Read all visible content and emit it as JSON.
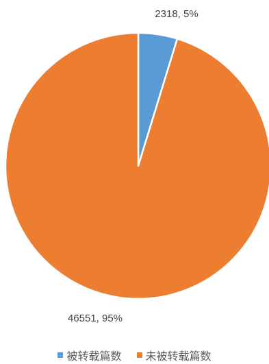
{
  "chart_data": {
    "type": "pie",
    "title": "",
    "slices": [
      {
        "name": "被转载篇数",
        "value": 2318,
        "percent": "5%",
        "label": "2318, 5%",
        "color": "#5B9BD5"
      },
      {
        "name": "未被转载篇数",
        "value": 46551,
        "percent": "95%",
        "label": "46551, 95%",
        "color": "#ED7D31"
      }
    ],
    "legend_position": "bottom"
  },
  "legend": {
    "items": [
      {
        "label": "被转载篇数",
        "color": "#5B9BD5"
      },
      {
        "label": "未被转载篇数",
        "color": "#ED7D31"
      }
    ]
  }
}
